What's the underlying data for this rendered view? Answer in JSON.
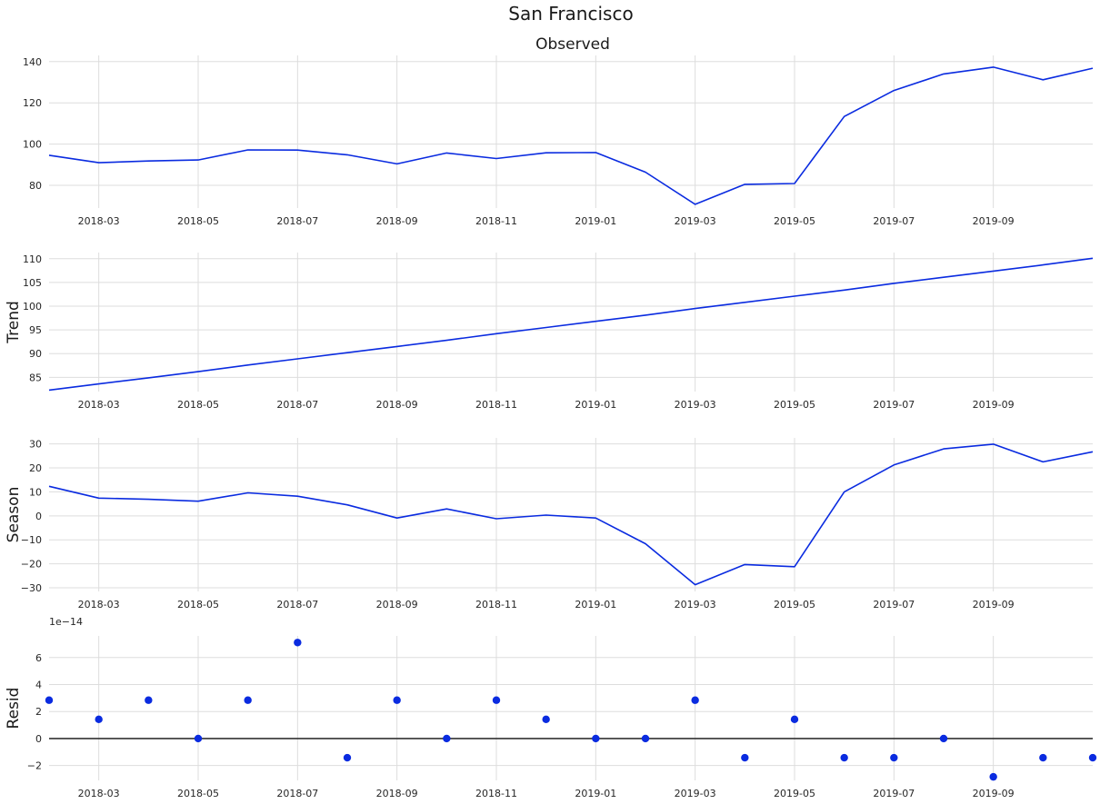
{
  "chart_data": {
    "type": "line",
    "title": "San Francisco",
    "x": [
      "2018-02",
      "2018-03",
      "2018-04",
      "2018-05",
      "2018-06",
      "2018-07",
      "2018-08",
      "2018-09",
      "2018-10",
      "2018-11",
      "2018-12",
      "2019-01",
      "2019-02",
      "2019-03",
      "2019-04",
      "2019-05",
      "2019-06",
      "2019-07",
      "2019-08",
      "2019-09",
      "2019-10",
      "2019-11"
    ],
    "x_tick_labels": [
      "2018-03",
      "2018-05",
      "2018-07",
      "2018-09",
      "2018-11",
      "2019-01",
      "2019-03",
      "2019-05",
      "2019-07",
      "2019-09"
    ],
    "grid": true,
    "line_color": "#0a2be0",
    "panels": [
      {
        "id": "observed",
        "type": "line",
        "title": "Observed",
        "ylabel": "",
        "ylim": [
          69,
          143
        ],
        "yticks": [
          80,
          100,
          120,
          140
        ],
        "values": [
          94.6,
          91.0,
          91.8,
          92.3,
          97.2,
          97.1,
          94.8,
          90.4,
          95.7,
          93.0,
          95.8,
          95.9,
          86.4,
          70.8,
          80.5,
          80.9,
          113.4,
          126.0,
          134.0,
          137.3,
          131.2,
          136.8
        ]
      },
      {
        "id": "trend",
        "type": "line",
        "title": "",
        "ylabel": "Trend",
        "ylim": [
          82,
          111.3
        ],
        "yticks": [
          85,
          90,
          95,
          100,
          105,
          110
        ],
        "values": [
          82.3,
          83.6,
          84.9,
          86.2,
          87.6,
          88.9,
          90.2,
          91.5,
          92.8,
          94.2,
          95.5,
          96.8,
          98.1,
          99.5,
          100.8,
          102.1,
          103.4,
          104.8,
          106.1,
          107.4,
          108.7,
          110.1
        ]
      },
      {
        "id": "season",
        "type": "line",
        "title": "",
        "ylabel": "Season",
        "ylim": [
          -31.5,
          32.5
        ],
        "yticks": [
          -30,
          -20,
          -10,
          0,
          10,
          20,
          30
        ],
        "values": [
          12.3,
          7.4,
          6.9,
          6.1,
          9.6,
          8.2,
          4.6,
          -0.9,
          2.9,
          -1.2,
          0.3,
          -0.9,
          -11.6,
          -28.7,
          -20.3,
          -21.2,
          10.0,
          21.2,
          27.9,
          29.9,
          22.5,
          26.7
        ]
      },
      {
        "id": "resid",
        "type": "scatter",
        "title": "",
        "ylabel": "Resid",
        "scale_label": "1e−14",
        "ylim": [
          -3.1,
          7.6
        ],
        "yticks": [
          -2,
          0,
          2,
          4,
          6
        ],
        "zero_line": true,
        "values": [
          2.84,
          1.42,
          2.84,
          0.0,
          2.84,
          7.11,
          -1.42,
          2.84,
          0.0,
          2.84,
          1.42,
          0.0,
          0.0,
          2.84,
          -1.42,
          1.42,
          -1.42,
          -1.42,
          0.0,
          -2.84,
          -1.42,
          -1.42
        ]
      }
    ]
  }
}
